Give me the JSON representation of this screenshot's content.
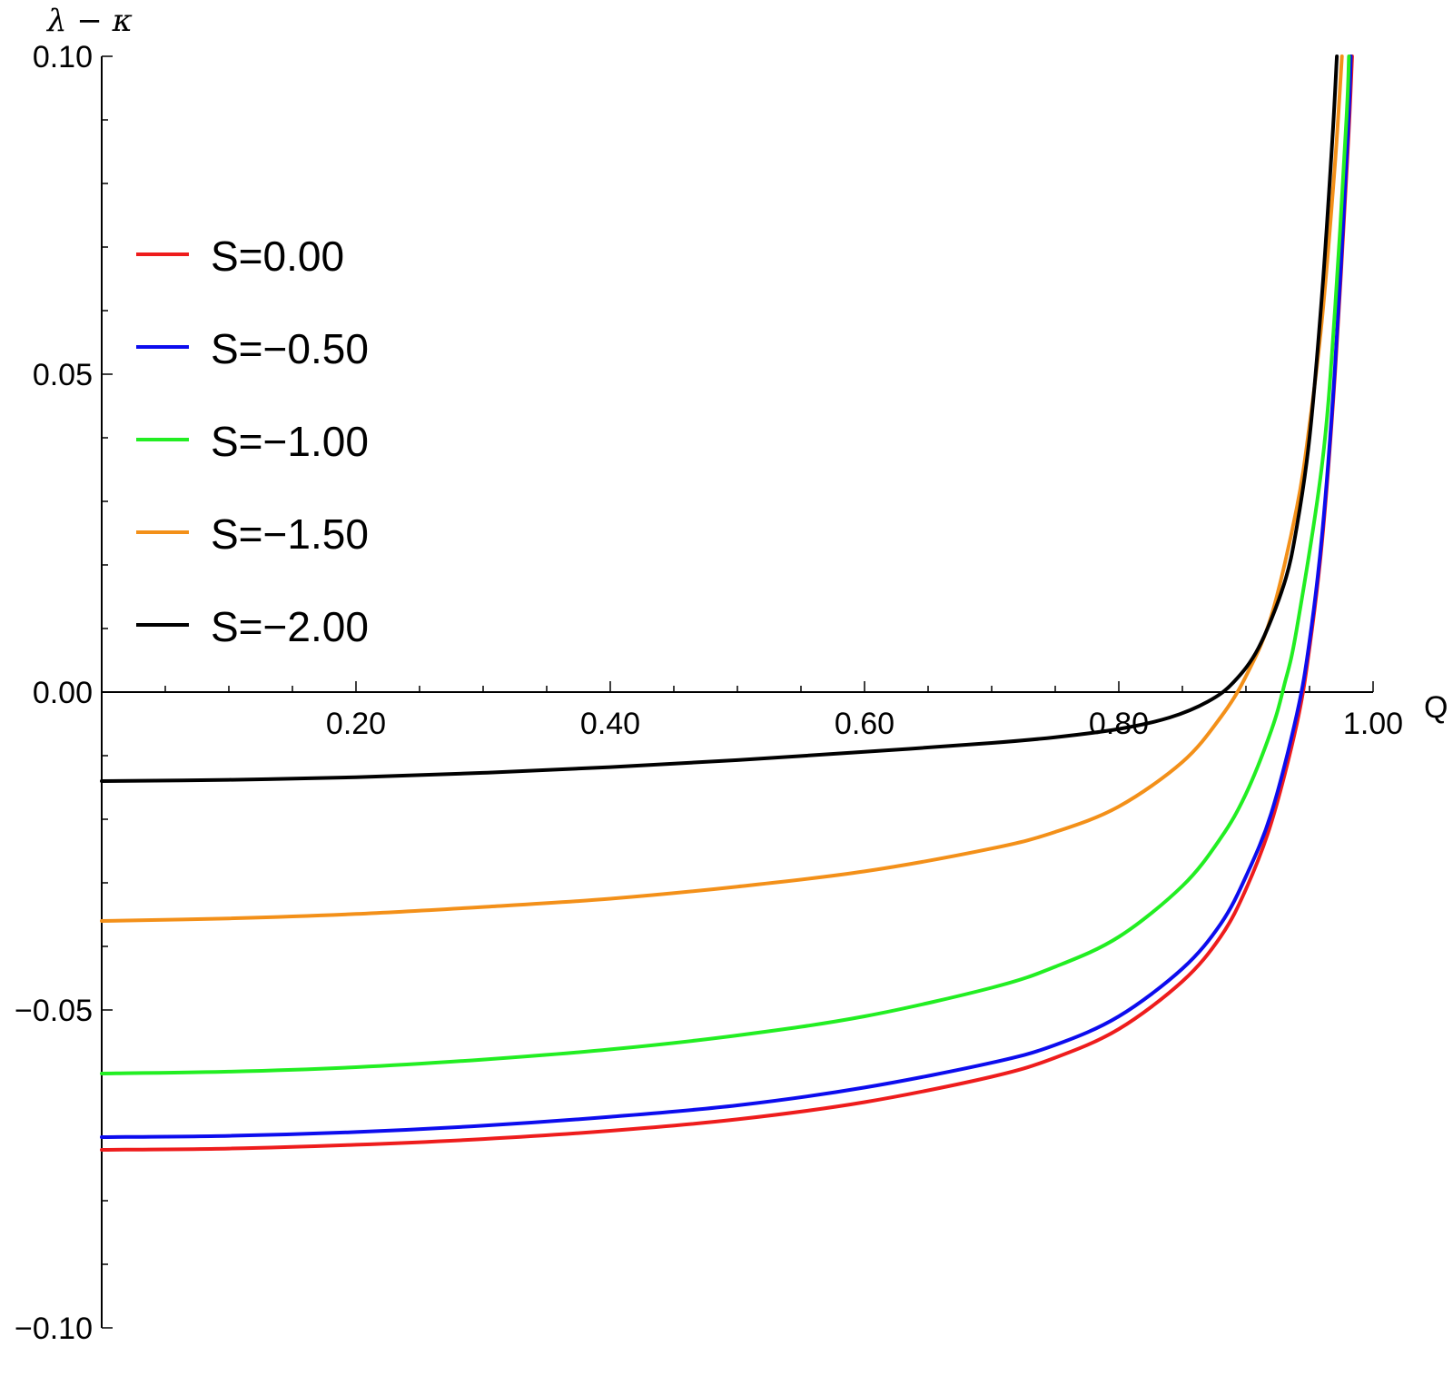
{
  "chart_data": {
    "type": "line",
    "title": "",
    "xlabel": "Q",
    "ylabel": "λ − κ",
    "xlim": [
      0,
      1.0
    ],
    "ylim": [
      -0.1,
      0.1
    ],
    "x_ticks": [
      "0.20",
      "0.40",
      "0.60",
      "0.80",
      "1.00"
    ],
    "y_ticks": [
      "0.10",
      "0.05",
      "0.00",
      "−0.05",
      "−0.10"
    ],
    "legend_position": "left",
    "grid": false,
    "series": [
      {
        "name": "S=0.00",
        "color": "#ee1c1c",
        "points": [
          [
            0,
            -0.072
          ],
          [
            0.1,
            -0.0718
          ],
          [
            0.2,
            -0.0712
          ],
          [
            0.3,
            -0.0703
          ],
          [
            0.4,
            -0.069
          ],
          [
            0.5,
            -0.0672
          ],
          [
            0.6,
            -0.0645
          ],
          [
            0.7,
            -0.0605
          ],
          [
            0.75,
            -0.0575
          ],
          [
            0.8,
            -0.053
          ],
          [
            0.85,
            -0.0455
          ],
          [
            0.88,
            -0.0385
          ],
          [
            0.9,
            -0.031
          ],
          [
            0.92,
            -0.0205
          ],
          [
            0.94,
            -0.005
          ],
          [
            0.95,
            0.007
          ],
          [
            0.96,
            0.024
          ],
          [
            0.97,
            0.05
          ],
          [
            0.98,
            0.085
          ],
          [
            0.9835,
            0.1
          ]
        ]
      },
      {
        "name": "S=−0.50",
        "color": "#0c0cee",
        "points": [
          [
            0,
            -0.07
          ],
          [
            0.1,
            -0.0698
          ],
          [
            0.2,
            -0.0692
          ],
          [
            0.3,
            -0.0682
          ],
          [
            0.4,
            -0.0668
          ],
          [
            0.5,
            -0.065
          ],
          [
            0.6,
            -0.0622
          ],
          [
            0.7,
            -0.0583
          ],
          [
            0.75,
            -0.0555
          ],
          [
            0.8,
            -0.051
          ],
          [
            0.85,
            -0.0435
          ],
          [
            0.88,
            -0.0365
          ],
          [
            0.9,
            -0.029
          ],
          [
            0.92,
            -0.019
          ],
          [
            0.94,
            -0.0035
          ],
          [
            0.95,
            0.008
          ],
          [
            0.96,
            0.025
          ],
          [
            0.97,
            0.051
          ],
          [
            0.98,
            0.087
          ],
          [
            0.9825,
            0.1
          ]
        ]
      },
      {
        "name": "S=−1.00",
        "color": "#22ee22",
        "points": [
          [
            0,
            -0.06
          ],
          [
            0.1,
            -0.0597
          ],
          [
            0.2,
            -0.059
          ],
          [
            0.3,
            -0.0578
          ],
          [
            0.4,
            -0.0562
          ],
          [
            0.5,
            -0.054
          ],
          [
            0.6,
            -0.051
          ],
          [
            0.7,
            -0.0465
          ],
          [
            0.75,
            -0.0432
          ],
          [
            0.8,
            -0.0385
          ],
          [
            0.85,
            -0.0305
          ],
          [
            0.88,
            -0.023
          ],
          [
            0.9,
            -0.016
          ],
          [
            0.92,
            -0.006
          ],
          [
            0.93,
            0.001
          ],
          [
            0.94,
            0.01
          ],
          [
            0.96,
            0.036
          ],
          [
            0.97,
            0.06
          ],
          [
            0.979,
            0.09
          ],
          [
            0.981,
            0.1
          ]
        ]
      },
      {
        "name": "S=−1.50",
        "color": "#f39019",
        "points": [
          [
            0,
            -0.036
          ],
          [
            0.1,
            -0.0356
          ],
          [
            0.2,
            -0.0349
          ],
          [
            0.3,
            -0.0338
          ],
          [
            0.4,
            -0.0325
          ],
          [
            0.5,
            -0.0306
          ],
          [
            0.6,
            -0.0282
          ],
          [
            0.7,
            -0.0246
          ],
          [
            0.75,
            -0.022
          ],
          [
            0.8,
            -0.018
          ],
          [
            0.85,
            -0.011
          ],
          [
            0.88,
            -0.004
          ],
          [
            0.9,
            0.0025
          ],
          [
            0.92,
            0.012
          ],
          [
            0.94,
            0.029
          ],
          [
            0.95,
            0.042
          ],
          [
            0.96,
            0.059
          ],
          [
            0.97,
            0.083
          ],
          [
            0.9755,
            0.1
          ]
        ]
      },
      {
        "name": "S=−2.00",
        "color": "#000000",
        "points": [
          [
            0,
            -0.014
          ],
          [
            0.1,
            -0.0138
          ],
          [
            0.2,
            -0.0134
          ],
          [
            0.3,
            -0.0127
          ],
          [
            0.4,
            -0.0118
          ],
          [
            0.5,
            -0.0107
          ],
          [
            0.6,
            -0.0094
          ],
          [
            0.7,
            -0.008
          ],
          [
            0.75,
            -0.0071
          ],
          [
            0.8,
            -0.0058
          ],
          [
            0.84,
            -0.004
          ],
          [
            0.87,
            -0.0015
          ],
          [
            0.89,
            0.0015
          ],
          [
            0.91,
            0.007
          ],
          [
            0.93,
            0.017
          ],
          [
            0.94,
            0.026
          ],
          [
            0.95,
            0.04
          ],
          [
            0.96,
            0.063
          ],
          [
            0.968,
            0.087
          ],
          [
            0.9715,
            0.1
          ]
        ]
      }
    ]
  }
}
